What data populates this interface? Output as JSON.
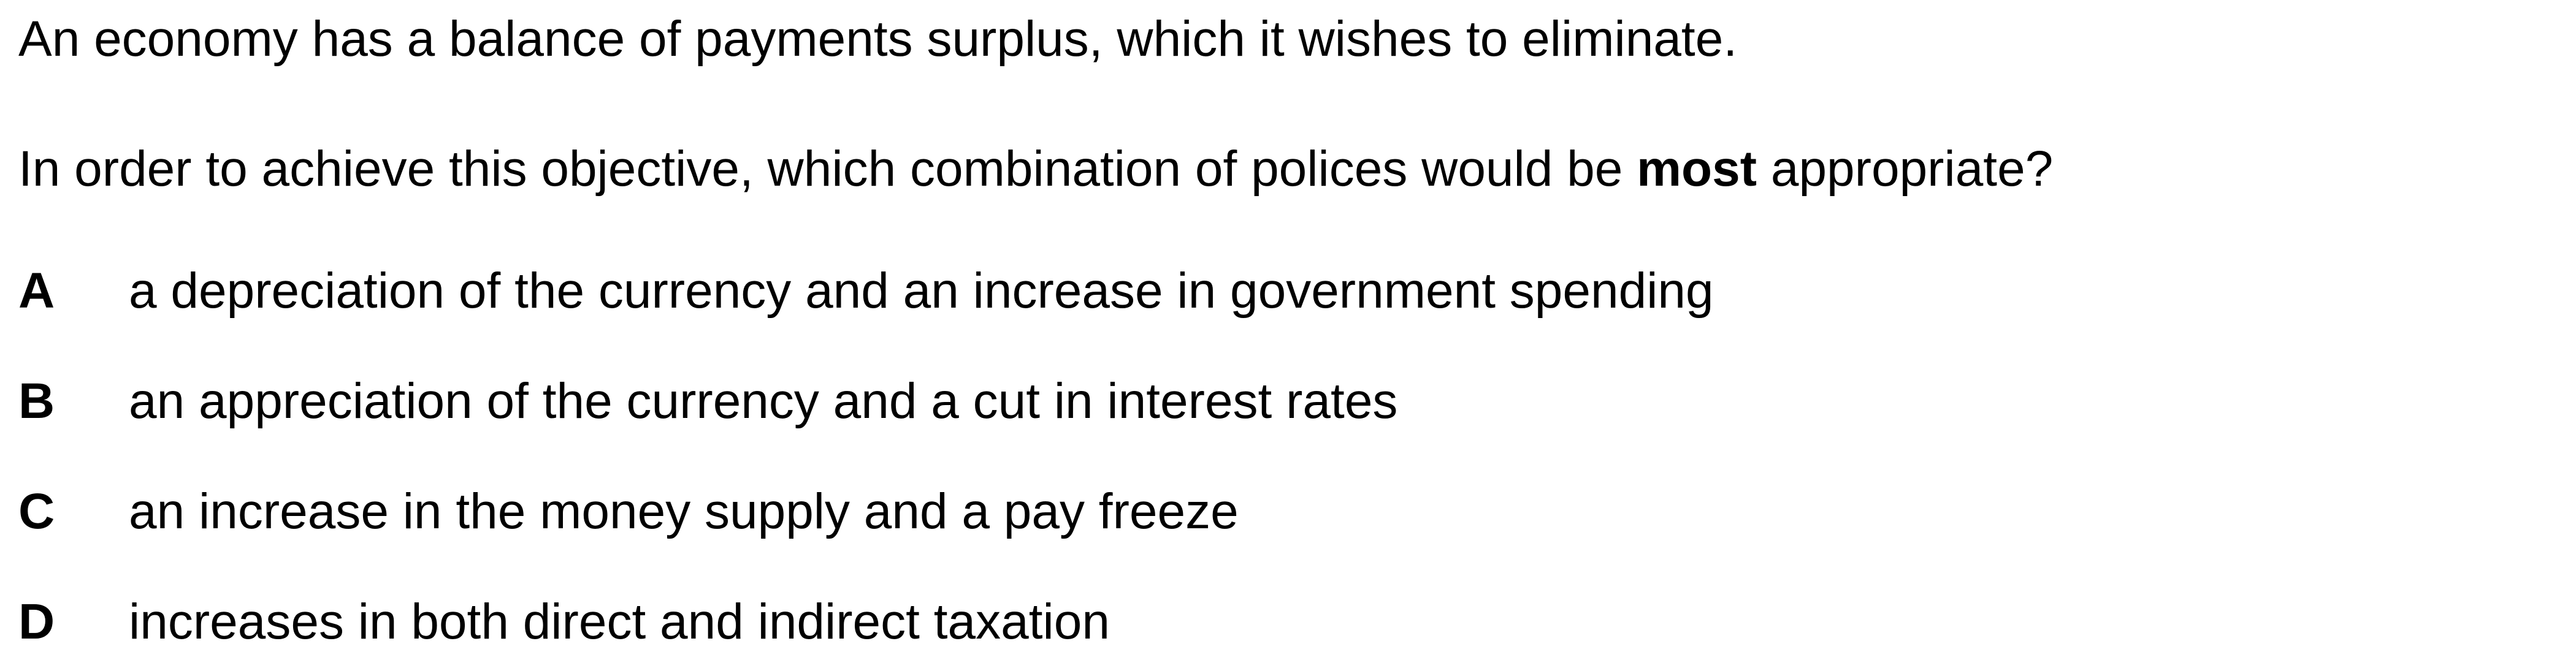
{
  "stem": "An economy has a balance of payments surplus, which it wishes to eliminate.",
  "question": {
    "before": "In order to achieve this objective, which combination of polices would be ",
    "emphasis": "most",
    "after": " appropriate?"
  },
  "options": [
    {
      "letter": "A",
      "text": "a depreciation of the currency and an increase in government spending"
    },
    {
      "letter": "B",
      "text": "an appreciation of the currency and a cut in interest rates"
    },
    {
      "letter": "C",
      "text": "an increase in the money supply and a pay freeze"
    },
    {
      "letter": "D",
      "text": "increases in both direct and indirect taxation"
    }
  ]
}
